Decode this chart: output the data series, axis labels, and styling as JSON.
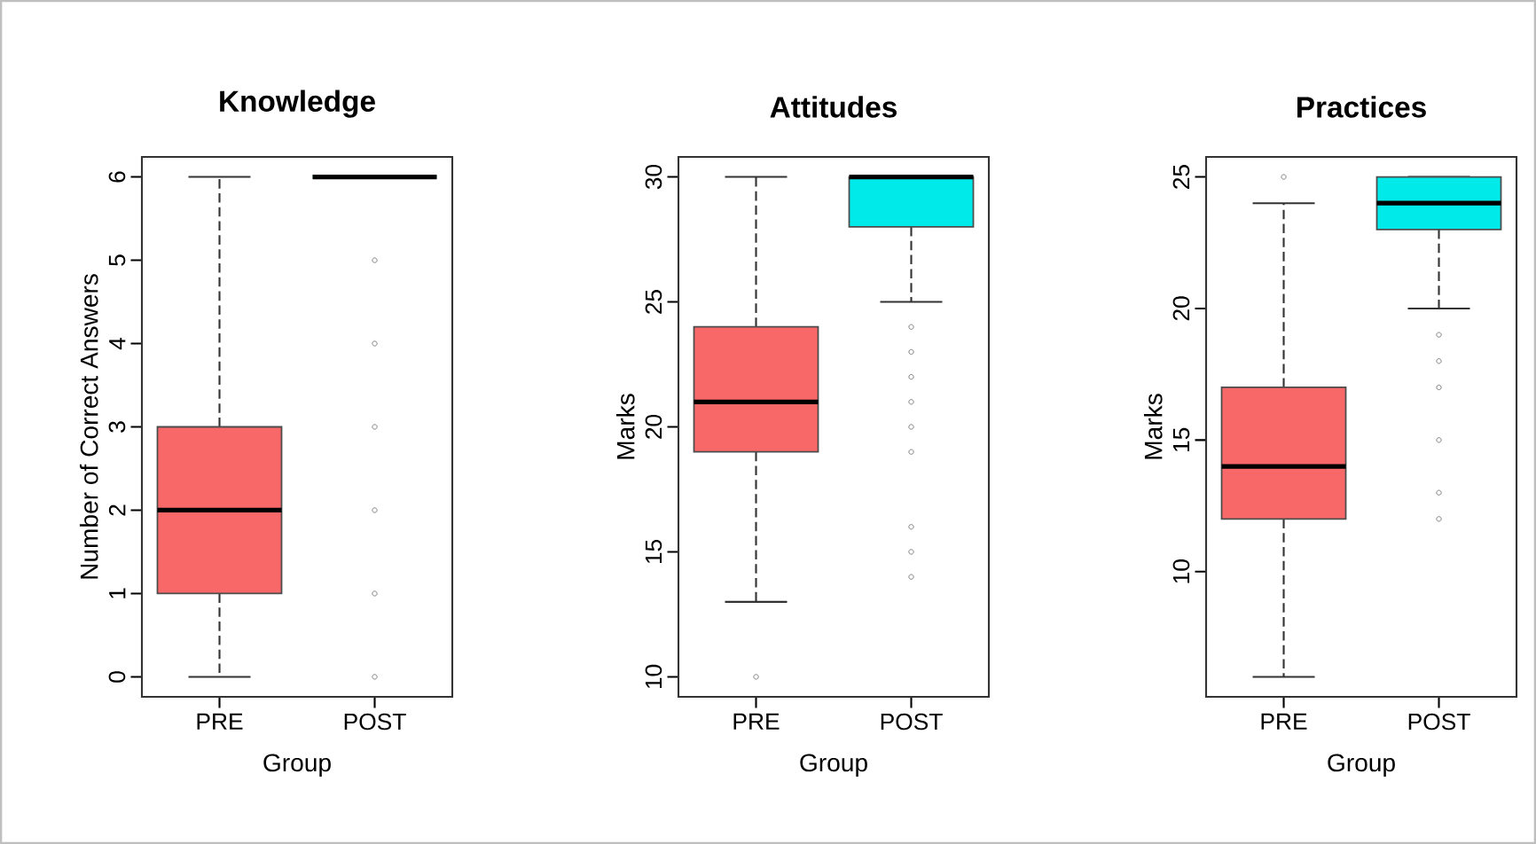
{
  "chart_data": [
    {
      "type": "box",
      "title": "Knowledge",
      "xlabel": "Group",
      "ylabel": "Number of Correct Answers",
      "categories": [
        "PRE",
        "POST"
      ],
      "colors": [
        "#f86868",
        "#00eaea"
      ],
      "line_style": "dashed",
      "ylim": [
        -0.24,
        6.24
      ],
      "yticks": [
        0,
        1,
        2,
        3,
        4,
        5,
        6
      ],
      "boxes": [
        {
          "low": 0,
          "q1": 1,
          "median": 2,
          "q3": 3,
          "high": 6
        },
        {
          "low": 6,
          "q1": 6,
          "median": 6,
          "q3": 6,
          "high": 6,
          "outliers": [
            5,
            4,
            3,
            2,
            1,
            0
          ]
        }
      ]
    },
    {
      "type": "box",
      "title": "Attitudes",
      "xlabel": "Group",
      "ylabel": "Marks",
      "categories": [
        "PRE",
        "POST"
      ],
      "colors": [
        "#f86868",
        "#00eaea"
      ],
      "line_style": "dashed",
      "ylim": [
        9.2,
        30.8
      ],
      "yticks": [
        10,
        15,
        20,
        25,
        30
      ],
      "boxes": [
        {
          "low": 13,
          "q1": 19,
          "median": 21,
          "q3": 24,
          "high": 30,
          "outliers": [
            10
          ]
        },
        {
          "low": 25,
          "q1": 28,
          "median": 30,
          "q3": 30,
          "high": 30,
          "outliers": [
            24,
            23,
            22,
            21,
            20,
            19,
            16,
            15,
            14
          ]
        }
      ]
    },
    {
      "type": "box",
      "title": "Practices",
      "xlabel": "Group",
      "ylabel": "Marks",
      "categories": [
        "PRE",
        "POST"
      ],
      "colors": [
        "#f86868",
        "#00eaea"
      ],
      "line_style": "dashed",
      "ylim": [
        5.24,
        25.76
      ],
      "yticks": [
        10,
        15,
        20,
        25
      ],
      "boxes": [
        {
          "low": 6,
          "q1": 12,
          "median": 14,
          "q3": 17,
          "high": 24,
          "outliers": [
            25
          ]
        },
        {
          "low": 20,
          "q1": 23,
          "median": 24,
          "q3": 25,
          "high": 25,
          "outliers": [
            19,
            18,
            17,
            15,
            13,
            12
          ]
        }
      ]
    }
  ]
}
